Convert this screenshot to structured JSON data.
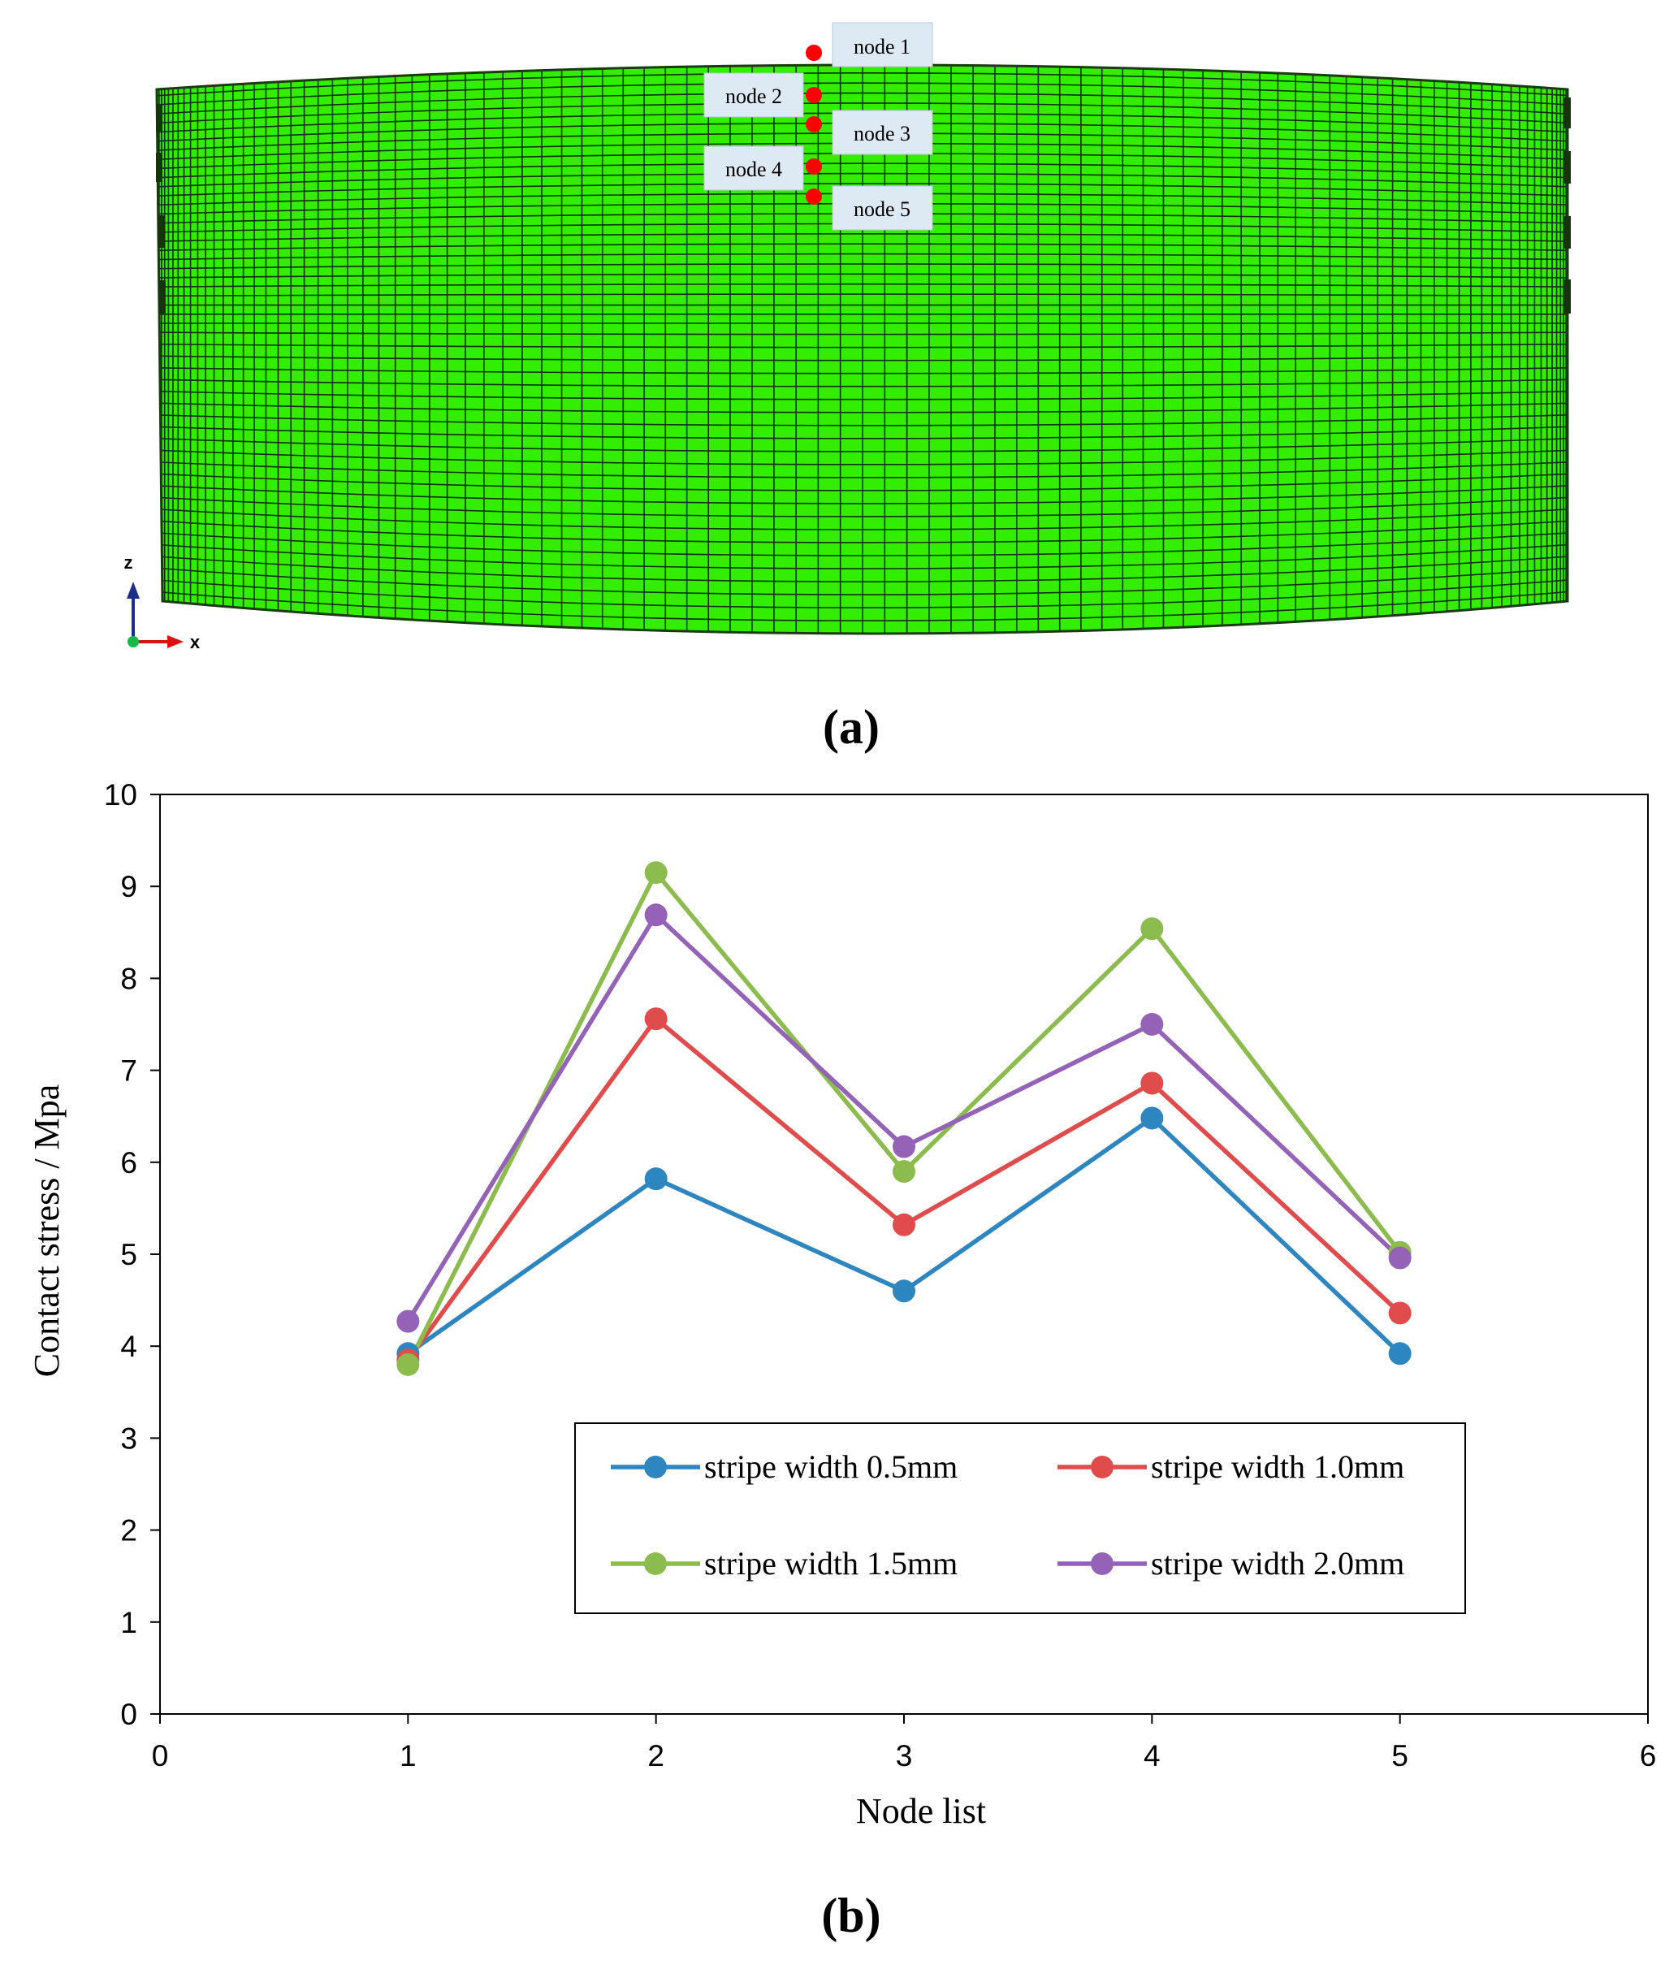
{
  "panel_a": {
    "caption": "(a)",
    "mesh_color": "#33ee00",
    "mesh_line_color": "#0a3300",
    "node_color": "#ff0000",
    "node_labels": [
      "node 1",
      "node 2",
      "node 3",
      "node 4",
      "node 5"
    ],
    "triad": {
      "z_label": "z",
      "x_label": "x"
    }
  },
  "panel_b": {
    "caption": "(b)"
  },
  "chart_data": {
    "type": "line",
    "xlabel": "Node list",
    "ylabel": "Contact stress / Mpa",
    "xlim": [
      0,
      6
    ],
    "ylim": [
      0,
      10
    ],
    "x_ticks": [
      0,
      1,
      2,
      3,
      4,
      5,
      6
    ],
    "y_ticks": [
      0,
      1,
      2,
      3,
      4,
      5,
      6,
      7,
      8,
      9,
      10
    ],
    "grid": false,
    "legend_position": "bottom-right",
    "x": [
      1,
      2,
      3,
      4,
      5
    ],
    "series": [
      {
        "name": "stripe width 0.5mm",
        "color": "#2e86c1",
        "values": [
          3.92,
          5.82,
          4.6,
          6.48,
          3.92
        ]
      },
      {
        "name": "stripe width 1.0mm",
        "color": "#e04b4b",
        "values": [
          3.85,
          7.56,
          5.32,
          6.86,
          4.36
        ]
      },
      {
        "name": "stripe width 1.5mm",
        "color": "#8cbb4e",
        "values": [
          3.8,
          9.15,
          5.9,
          8.54,
          5.02
        ]
      },
      {
        "name": "stripe width 2.0mm",
        "color": "#9463b8",
        "values": [
          4.27,
          8.69,
          6.17,
          7.5,
          4.96
        ]
      }
    ]
  }
}
